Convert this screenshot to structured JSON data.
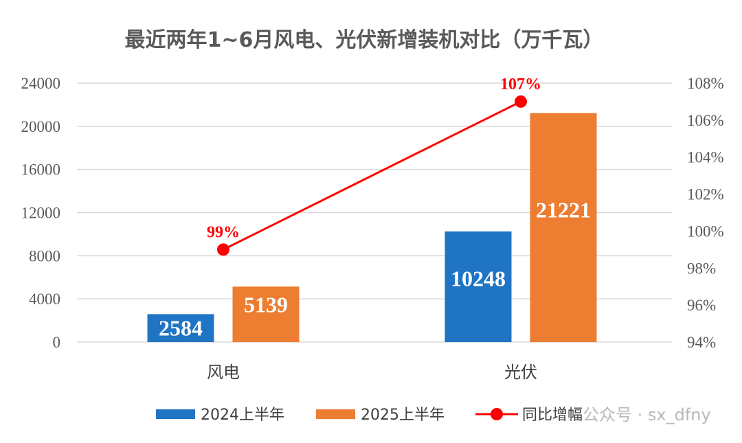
{
  "chart_data": {
    "type": "bar",
    "title": "最近两年1~6月风电、光伏新增装机对比（万千瓦）",
    "categories": [
      "风电",
      "光伏"
    ],
    "series": [
      {
        "name": "2024上半年",
        "values": [
          2584,
          10248
        ],
        "color": "#1F74C4",
        "labels": [
          "2584",
          "10248"
        ]
      },
      {
        "name": "2025上半年",
        "values": [
          5139,
          21221
        ],
        "color": "#ED7D31",
        "labels": [
          "5139",
          "21221"
        ]
      }
    ],
    "line_series": {
      "name": "同比增幅",
      "values": [
        99,
        107
      ],
      "labels": [
        "99%",
        "107%"
      ],
      "color": "#FF0000",
      "axis": "right"
    },
    "y_left": {
      "range": [
        0,
        24000
      ],
      "ticks": [
        "0",
        "4000",
        "8000",
        "12000",
        "16000",
        "20000",
        "24000"
      ]
    },
    "y_right": {
      "range": [
        94,
        108
      ],
      "ticks": [
        "94%",
        "96%",
        "98%",
        "100%",
        "102%",
        "104%",
        "106%",
        "108%"
      ]
    },
    "grid": true,
    "legend": "bottom"
  },
  "watermark": {
    "prefix": "公众号 · ",
    "handle": "sx_dfny"
  }
}
